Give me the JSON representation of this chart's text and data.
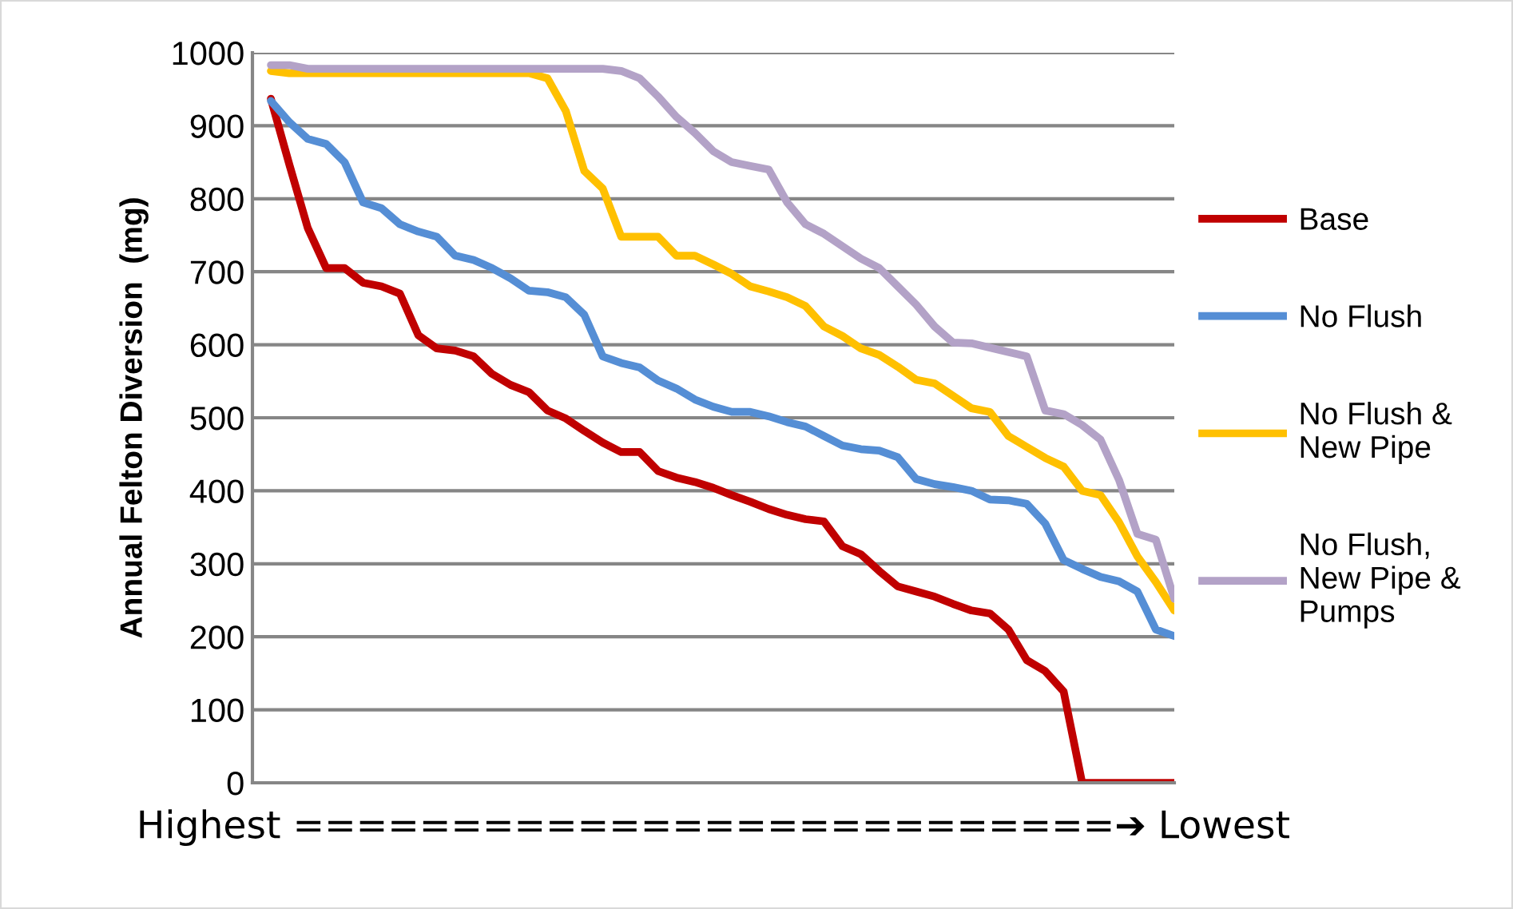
{
  "chart_data": {
    "type": "line",
    "xlabel": "Highest ==========================➔ Lowest",
    "ylabel": "Annual Felton Diversion  (mg)",
    "categories": [
      null,
      null,
      null,
      null,
      null,
      null,
      null,
      null,
      null,
      null,
      null,
      null,
      null,
      null,
      null,
      null,
      null,
      null,
      null,
      null,
      null,
      null,
      null,
      null,
      null,
      null,
      null,
      null,
      null,
      null,
      null,
      null,
      null,
      null,
      null,
      null,
      null,
      null,
      null,
      null,
      null,
      null,
      null,
      null,
      null,
      null,
      null,
      null,
      null,
      null
    ],
    "series": [
      {
        "name": "Base",
        "color": "#c00000",
        "values": [
          937,
          847,
          760,
          705,
          705,
          685,
          680,
          670,
          613,
          595,
          592,
          584,
          560,
          545,
          535,
          510,
          499,
          482,
          466,
          453,
          453,
          427,
          418,
          412,
          404,
          394,
          385,
          375,
          367,
          361,
          358,
          324,
          313,
          290,
          269,
          262,
          255,
          245,
          236,
          232,
          210,
          168,
          153,
          125,
          0,
          0,
          0,
          0,
          0,
          0
        ]
      },
      {
        "name": "No Flush",
        "color": "#558ed5",
        "values": [
          934,
          905,
          882,
          875,
          850,
          795,
          787,
          765,
          755,
          748,
          722,
          716,
          705,
          691,
          674,
          672,
          665,
          641,
          584,
          575,
          569,
          551,
          540,
          525,
          515,
          508,
          508,
          502,
          494,
          488,
          475,
          462,
          457,
          455,
          446,
          416,
          409,
          405,
          400,
          388,
          387,
          382,
          355,
          305,
          293,
          282,
          276,
          262,
          210,
          201
        ]
      },
      {
        "name": "No Flush & New Pipe",
        "color": "#ffc000",
        "values": [
          975,
          972,
          972,
          972,
          972,
          972,
          972,
          972,
          972,
          972,
          972,
          972,
          972,
          972,
          972,
          965,
          920,
          838,
          814,
          748,
          748,
          748,
          722,
          722,
          710,
          697,
          680,
          673,
          665,
          653,
          625,
          612,
          595,
          586,
          570,
          552,
          547,
          530,
          513,
          508,
          475,
          460,
          445,
          433,
          400,
          394,
          357,
          310,
          275,
          236
        ]
      },
      {
        "name": "No Flush, New Pipe & Pumps",
        "color": "#b3a2c7",
        "values": [
          983,
          983,
          978,
          978,
          978,
          978,
          978,
          978,
          978,
          978,
          978,
          978,
          978,
          978,
          978,
          978,
          978,
          978,
          978,
          975,
          965,
          940,
          912,
          890,
          865,
          850,
          845,
          840,
          795,
          765,
          752,
          735,
          718,
          705,
          680,
          655,
          625,
          603,
          602,
          596,
          590,
          584,
          510,
          505,
          490,
          470,
          415,
          341,
          333,
          252
        ]
      }
    ],
    "ylim": [
      0,
      1000
    ],
    "yticks": [
      0,
      100,
      200,
      300,
      400,
      500,
      600,
      700,
      800,
      900,
      1000
    ],
    "grid": "y",
    "legend": "right",
    "tick_labels": "y",
    "marker": "none",
    "line_style": "solid"
  }
}
